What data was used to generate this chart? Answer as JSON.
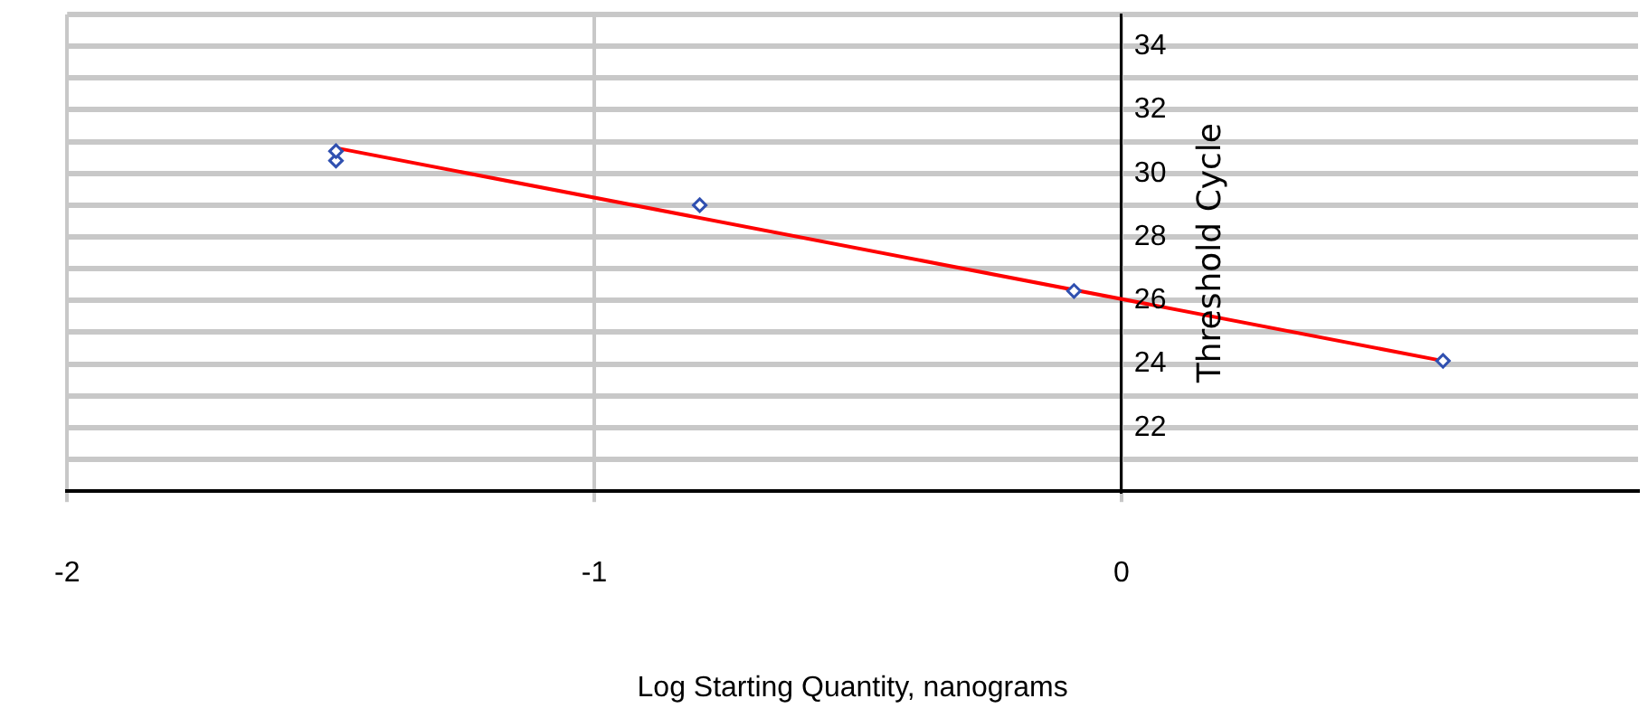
{
  "chart_data": {
    "type": "scatter",
    "xlabel": "Log Starting Quantity, nanograms",
    "ylabel": "Threshold Cycle",
    "xlim": [
      -2,
      0.98
    ],
    "xticks": [
      -2,
      -1,
      0
    ],
    "ylim": [
      20,
      35
    ],
    "yticks": [
      {
        "value": 21,
        "label": null
      },
      22,
      {
        "value": 23,
        "label": null
      },
      24,
      {
        "value": 25,
        "label": null
      },
      26,
      {
        "value": 27,
        "label": null
      },
      28,
      {
        "value": 29,
        "label": null
      },
      30,
      {
        "value": 31,
        "label": null
      },
      32,
      {
        "value": 33,
        "label": null
      },
      34,
      {
        "value": 35,
        "label": null
      }
    ],
    "grid": true,
    "legend": false,
    "series": [
      {
        "type": "scatter",
        "marker": "diamond",
        "color": "#3050b0",
        "x": [
          -1.49,
          -1.49,
          -0.8,
          -0.09,
          0.61
        ],
        "values": [
          30.4,
          30.7,
          29.0,
          26.3,
          24.1
        ]
      },
      {
        "type": "line",
        "marker": "none",
        "color": "#ff0000",
        "x": [
          -1.49,
          0.61
        ],
        "values": [
          30.8,
          24.1
        ]
      }
    ]
  }
}
